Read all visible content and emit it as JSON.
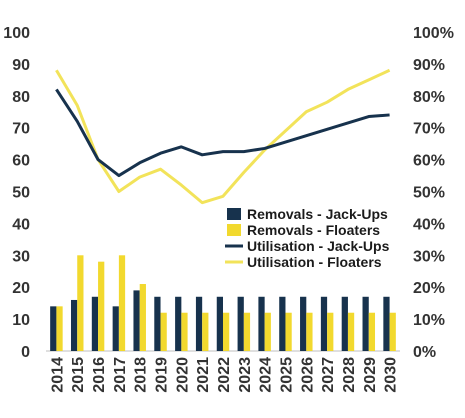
{
  "chart_data": {
    "type": "bar",
    "categories": [
      "2014",
      "2015",
      "2016",
      "2017",
      "2018",
      "2019",
      "2020",
      "2021",
      "2022",
      "2023",
      "2024",
      "2025",
      "2026",
      "2027",
      "2028",
      "2029",
      "2030"
    ],
    "series": [
      {
        "name": "Removals - Jack-Ups",
        "kind": "bar",
        "axis": "left",
        "color": "#17324d",
        "values": [
          14,
          16,
          17,
          14,
          19,
          17,
          17,
          17,
          17,
          17,
          17,
          17,
          17,
          17,
          17,
          17,
          17
        ]
      },
      {
        "name": "Removals - Floaters",
        "kind": "bar",
        "axis": "left",
        "color": "#f2d92e",
        "values": [
          14,
          30,
          28,
          30,
          21,
          12,
          12,
          12,
          12,
          12,
          12,
          12,
          12,
          12,
          12,
          12,
          12
        ]
      },
      {
        "name": "Utilisation - Jack-Ups",
        "kind": "line",
        "axis": "right",
        "color": "#17324d",
        "values": [
          82,
          72,
          60,
          55,
          59,
          62,
          64,
          61.5,
          62.5,
          62.5,
          63.5,
          65.5,
          67.5,
          69.5,
          71.5,
          73.5,
          74
        ]
      },
      {
        "name": "Utilisation - Floaters",
        "kind": "line",
        "axis": "right",
        "color": "#f2e35a",
        "values": [
          88,
          77,
          60,
          50,
          54.5,
          57,
          52,
          46.5,
          48.5,
          56,
          63,
          69,
          75,
          78,
          82,
          85,
          88
        ]
      }
    ],
    "left_axis": {
      "ylim": [
        0,
        100
      ],
      "ticks": [
        "0",
        "10",
        "20",
        "30",
        "40",
        "50",
        "60",
        "70",
        "80",
        "90",
        "100"
      ]
    },
    "right_axis": {
      "ylim": [
        0,
        100
      ],
      "ticks": [
        "0%",
        "10%",
        "20%",
        "30%",
        "40%",
        "50%",
        "60%",
        "70%",
        "80%",
        "90%",
        "100%"
      ]
    },
    "grid": false,
    "legend_position": "center-right"
  }
}
